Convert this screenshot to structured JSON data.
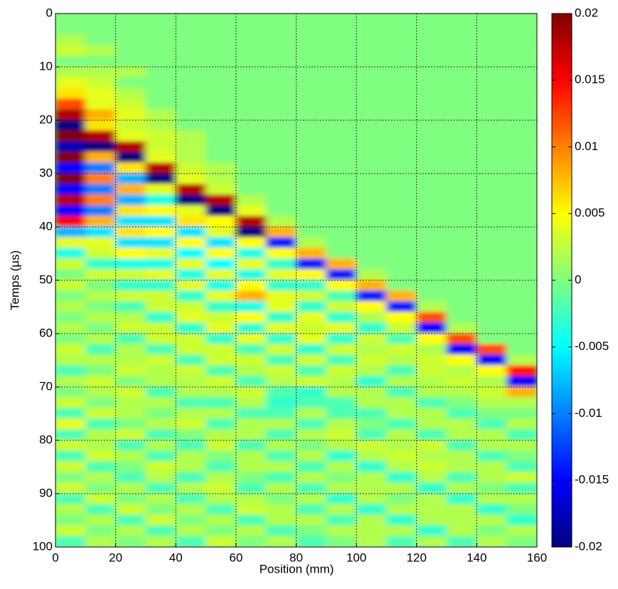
{
  "chart_data": {
    "type": "heatmap",
    "colormap": "jet",
    "grid": true,
    "y_reversed": true,
    "xlabel": "Position (mm)",
    "ylabel": "Temps (µs)",
    "xlim": [
      0,
      160
    ],
    "ylim": [
      0,
      100
    ],
    "xticks": [
      0,
      20,
      40,
      60,
      80,
      100,
      120,
      140,
      160
    ],
    "yticks": [
      0,
      10,
      20,
      30,
      40,
      50,
      60,
      70,
      80,
      90,
      100
    ],
    "clim": [
      -0.02,
      0.02
    ],
    "cticks": [
      -0.02,
      -0.015,
      -0.01,
      -0.005,
      0,
      0.005,
      0.01,
      0.015,
      0.02
    ],
    "z": [
      [
        0,
        0,
        0,
        0,
        0,
        0,
        0,
        0,
        0,
        0,
        0,
        0,
        0,
        0,
        0,
        0
      ],
      [
        0,
        0,
        0,
        0,
        0,
        0,
        0,
        0,
        0,
        0,
        0,
        0,
        0,
        0,
        0,
        0
      ],
      [
        0.002,
        0,
        0,
        0,
        0,
        0,
        0,
        0,
        0,
        0,
        0,
        0,
        0,
        0,
        0,
        0
      ],
      [
        0.003,
        0.002,
        0,
        0,
        0,
        0,
        0,
        0,
        0,
        0,
        0,
        0,
        0,
        0,
        0,
        0
      ],
      [
        0,
        0,
        0,
        0,
        0,
        0,
        0,
        0,
        0,
        0,
        0,
        0,
        0,
        0,
        0,
        0
      ],
      [
        0.002,
        0.002,
        0.002,
        0,
        0,
        0,
        0,
        0,
        0,
        0,
        0,
        0,
        0,
        0,
        0,
        0
      ],
      [
        0.004,
        0.003,
        0,
        0,
        0,
        0,
        0,
        0,
        0,
        0,
        0,
        0,
        0,
        0,
        0,
        0
      ],
      [
        0.006,
        0.004,
        0.002,
        0,
        0,
        0,
        0,
        0,
        0,
        0,
        0,
        0,
        0,
        0,
        0,
        0
      ],
      [
        0.012,
        0.004,
        0.003,
        0,
        0,
        0,
        0,
        0,
        0,
        0,
        0,
        0,
        0,
        0,
        0,
        0
      ],
      [
        0.018,
        0.008,
        0.004,
        0.002,
        0,
        0,
        0,
        0,
        0,
        0,
        0,
        0,
        0,
        0,
        0,
        0
      ],
      [
        -0.02,
        0.006,
        0.003,
        0.002,
        0,
        0,
        0,
        0,
        0,
        0,
        0,
        0,
        0,
        0,
        0,
        0
      ],
      [
        0.02,
        0.018,
        0.004,
        0.003,
        0.002,
        0,
        0,
        0,
        0,
        0,
        0,
        0,
        0,
        0,
        0,
        0
      ],
      [
        -0.018,
        -0.02,
        0.018,
        0.003,
        0.002,
        0,
        0,
        0,
        0,
        0,
        0,
        0,
        0,
        0,
        0,
        0
      ],
      [
        0.02,
        0.008,
        -0.02,
        0.004,
        0.002,
        0,
        0,
        0,
        0,
        0,
        0,
        0,
        0,
        0,
        0,
        0
      ],
      [
        -0.015,
        -0.01,
        0.006,
        0.018,
        0.003,
        0.002,
        0,
        0,
        0,
        0,
        0,
        0,
        0,
        0,
        0,
        0
      ],
      [
        0.02,
        0.01,
        -0.008,
        -0.02,
        0.004,
        0.002,
        0,
        0,
        0,
        0,
        0,
        0,
        0,
        0,
        0,
        0
      ],
      [
        -0.015,
        -0.01,
        0.008,
        0.004,
        0.018,
        0.003,
        0,
        0,
        0,
        0,
        0,
        0,
        0,
        0,
        0,
        0
      ],
      [
        0.018,
        0.01,
        -0.008,
        -0.004,
        -0.02,
        0.018,
        0.002,
        0,
        0,
        0,
        0,
        0,
        0,
        0,
        0,
        0
      ],
      [
        -0.015,
        -0.01,
        0.006,
        0.005,
        0.004,
        -0.02,
        0.004,
        0,
        0,
        0,
        0,
        0,
        0,
        0,
        0,
        0
      ],
      [
        0.015,
        0.008,
        -0.006,
        -0.006,
        0.006,
        0.005,
        0.018,
        0.002,
        0,
        0,
        0,
        0,
        0,
        0,
        0,
        0
      ],
      [
        -0.008,
        -0.006,
        0.006,
        0.005,
        -0.006,
        0.004,
        -0.02,
        0.008,
        0,
        0,
        0,
        0,
        0,
        0,
        0,
        0
      ],
      [
        0.004,
        0.004,
        -0.006,
        -0.006,
        0.005,
        -0.006,
        0.005,
        -0.014,
        0.002,
        0,
        0,
        0,
        0,
        0,
        0,
        0
      ],
      [
        -0.004,
        0.003,
        0.005,
        0.004,
        -0.005,
        0.005,
        -0.004,
        0.005,
        0.008,
        0,
        0,
        0,
        0,
        0,
        0,
        0
      ],
      [
        0.003,
        -0.003,
        -0.004,
        -0.004,
        0.004,
        -0.005,
        0.004,
        -0.003,
        -0.014,
        0.008,
        0,
        0,
        0,
        0,
        0,
        0
      ],
      [
        0,
        0.003,
        0.003,
        0.004,
        -0.004,
        0.004,
        -0.004,
        0.004,
        0.005,
        -0.014,
        0.002,
        0,
        0,
        0,
        0,
        0
      ],
      [
        0.003,
        0,
        -0.003,
        -0.003,
        0.004,
        -0.004,
        0.005,
        -0.003,
        -0.003,
        0.005,
        0.008,
        0,
        0,
        0,
        0,
        0
      ],
      [
        0,
        0.002,
        0.003,
        0.003,
        -0.003,
        0.004,
        0.008,
        0.004,
        0.003,
        -0.002,
        -0.014,
        0.008,
        0,
        0,
        0,
        0
      ],
      [
        0.002,
        0,
        -0.002,
        0.003,
        0.003,
        -0.003,
        -0.004,
        0.004,
        -0.003,
        0.003,
        0.005,
        -0.014,
        0.002,
        0,
        0,
        0
      ],
      [
        0,
        0.002,
        0.002,
        -0.003,
        0.004,
        0.003,
        0.005,
        -0.003,
        0.004,
        -0.003,
        0.002,
        0.005,
        0.012,
        0,
        0,
        0
      ],
      [
        0.002,
        0,
        0.003,
        0.003,
        -0.003,
        0.004,
        -0.003,
        0.004,
        0.003,
        0.004,
        -0.003,
        0.003,
        -0.015,
        0.002,
        0,
        0
      ],
      [
        0,
        0.002,
        -0.002,
        0.003,
        0.003,
        -0.003,
        0.004,
        -0.003,
        0.004,
        -0.003,
        0.003,
        -0.002,
        0.005,
        0.012,
        0,
        0
      ],
      [
        0.003,
        -0.002,
        0.002,
        -0.002,
        0.003,
        0.003,
        -0.002,
        0.003,
        -0.003,
        0.003,
        0.002,
        0.003,
        0.002,
        -0.015,
        0.012,
        0
      ],
      [
        0.002,
        0.002,
        0.002,
        0.003,
        -0.002,
        0.003,
        0.003,
        -0.002,
        0.003,
        -0.002,
        0.003,
        0.002,
        0.003,
        0.005,
        -0.015,
        0.002
      ],
      [
        -0.002,
        0,
        0.003,
        0.002,
        0.003,
        -0.002,
        0.002,
        0.003,
        -0.002,
        0.003,
        0.002,
        -0.002,
        0.003,
        0.002,
        0.005,
        0.014
      ],
      [
        0.002,
        0.003,
        0,
        0.002,
        0.002,
        0.003,
        -0.002,
        0.002,
        0.003,
        0.002,
        -0.003,
        0.002,
        0.002,
        0.003,
        0.002,
        -0.015
      ],
      [
        0,
        0.002,
        0.003,
        -0.002,
        0.002,
        0.002,
        0.003,
        -0.002,
        -0.003,
        0.002,
        0.002,
        -0.002,
        0.002,
        0.002,
        0.003,
        0.008
      ],
      [
        0.003,
        0,
        0.002,
        0.002,
        -0.002,
        -0.002,
        0.002,
        -0.003,
        -0.002,
        -0.002,
        0.002,
        0.002,
        -0.002,
        0,
        0.002,
        0.002
      ],
      [
        -0.002,
        0.003,
        0.002,
        0,
        0.002,
        0.002,
        -0.002,
        -0.002,
        0.002,
        -0.002,
        -0.002,
        0.002,
        0.002,
        -0.002,
        0,
        0
      ],
      [
        0.004,
        -0.002,
        0,
        0.002,
        0.003,
        -0.002,
        0.002,
        0.002,
        -0.002,
        0.002,
        0,
        -0.002,
        0.002,
        0.002,
        -0.002,
        0.002
      ],
      [
        -0.002,
        0.002,
        0.003,
        -0.002,
        0,
        0.002,
        0.002,
        -0.002,
        0.002,
        0.003,
        -0.002,
        0.002,
        -0.002,
        0.002,
        0.002,
        -0.002
      ],
      [
        0.003,
        0.002,
        -0.002,
        0.002,
        -0.002,
        0.003,
        -0.002,
        0.002,
        0,
        0.002,
        0.003,
        0.002,
        0.003,
        -0.002,
        0.002,
        0.002
      ],
      [
        -0.002,
        0.003,
        0.002,
        -0.002,
        0.002,
        0,
        0.002,
        -0.002,
        0.002,
        -0.003,
        0.002,
        0.003,
        0.002,
        0.002,
        -0.002,
        0
      ],
      [
        0.003,
        -0.002,
        0,
        0.003,
        0.002,
        -0.002,
        0.002,
        0.002,
        -0.002,
        0.002,
        -0.003,
        0.002,
        0.003,
        0.002,
        0.002,
        -0.002
      ],
      [
        0,
        0.002,
        -0.002,
        0.002,
        -0.002,
        0.002,
        0,
        -0.002,
        0.002,
        0,
        0.002,
        -0.003,
        0.002,
        -0.002,
        0.002,
        0.003
      ],
      [
        0.003,
        0,
        0.002,
        -0.002,
        0.002,
        0.003,
        -0.002,
        0.002,
        -0.002,
        0.002,
        0.002,
        0.002,
        -0.003,
        0.002,
        0,
        -0.002
      ],
      [
        -0.002,
        0.003,
        0,
        0.002,
        -0.002,
        0.002,
        0.002,
        0,
        0.002,
        -0.003,
        0.002,
        0,
        0.002,
        -0.003,
        0.002,
        0.002
      ],
      [
        0.002,
        -0.002,
        0.003,
        0,
        0.002,
        -0.002,
        0.003,
        0.002,
        -0.002,
        0.002,
        -0.003,
        0.002,
        0.002,
        0.002,
        -0.003,
        0
      ],
      [
        0,
        0.002,
        -0.002,
        0.003,
        0,
        0.002,
        -0.002,
        0.002,
        0.002,
        -0.002,
        0.002,
        -0.003,
        0.002,
        0.002,
        0.002,
        -0.003
      ],
      [
        0.003,
        0,
        0.002,
        -0.002,
        0.002,
        0,
        0.002,
        -0.002,
        0,
        0.002,
        0.002,
        0.002,
        -0.003,
        0.002,
        0,
        0.002
      ],
      [
        -0.002,
        0.002,
        0,
        0.002,
        -0.002,
        0.003,
        0,
        0.002,
        -0.002,
        0,
        0.002,
        -0.002,
        0.002,
        -0.002,
        0.002,
        0
      ]
    ]
  }
}
